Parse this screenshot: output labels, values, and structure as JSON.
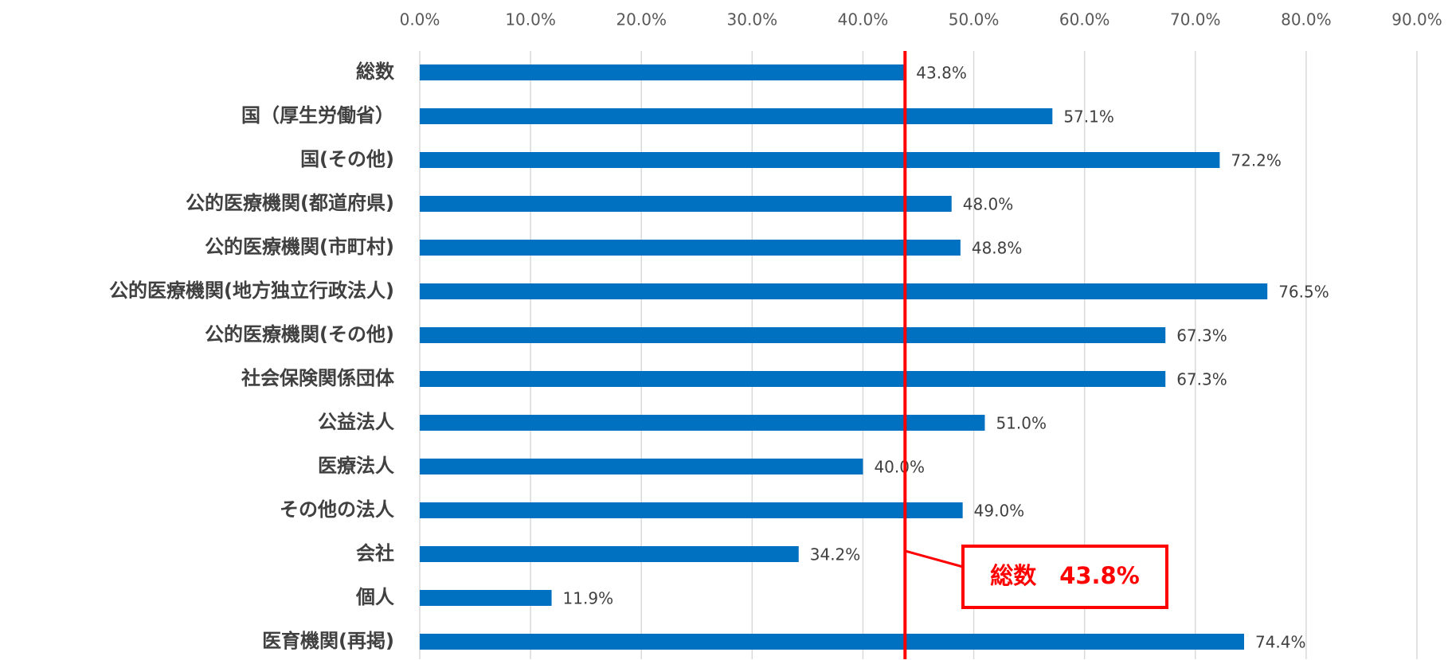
{
  "chart_data": {
    "type": "bar",
    "orientation": "horizontal",
    "categories": [
      "総数",
      "国（厚生労働省）",
      "国(その他)",
      "公的医療機関(都道府県)",
      "公的医療機関(市町村)",
      "公的医療機関(地方独立行政法人)",
      "公的医療機関(その他)",
      "社会保険関係団体",
      "公益法人",
      "医療法人",
      "その他の法人",
      "会社",
      "個人",
      "医育機関(再掲)"
    ],
    "values": [
      43.8,
      57.1,
      72.2,
      48.0,
      48.8,
      76.5,
      67.3,
      67.3,
      51.0,
      40.0,
      49.0,
      34.2,
      11.9,
      74.4
    ],
    "value_labels": [
      "43.8%",
      "57.1%",
      "72.2%",
      "48.0%",
      "48.8%",
      "76.5%",
      "67.3%",
      "67.3%",
      "51.0%",
      "40.0%",
      "49.0%",
      "34.2%",
      "11.9%",
      "74.4%"
    ],
    "color": "#0070c0",
    "xlim": [
      0,
      90
    ],
    "xticks": [
      {
        "value": 0,
        "label": "0.0%"
      },
      {
        "value": 10,
        "label": "10.0%"
      },
      {
        "value": 20,
        "label": "20.0%"
      },
      {
        "value": 30,
        "label": "30.0%"
      },
      {
        "value": 40,
        "label": "40.0%"
      },
      {
        "value": 50,
        "label": "50.0%"
      },
      {
        "value": 60,
        "label": "60.0%"
      },
      {
        "value": 70,
        "label": "70.0%"
      },
      {
        "value": 80,
        "label": "80.0%"
      },
      {
        "value": 90,
        "label": "90.0%"
      }
    ],
    "grid": true,
    "reference_line": {
      "value": 43.8,
      "label": "総数　43.8%",
      "color": "#ff0000"
    }
  }
}
